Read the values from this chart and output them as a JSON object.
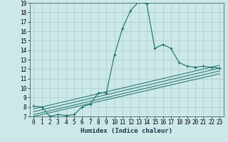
{
  "xlabel": "Humidex (Indice chaleur)",
  "bg_color": "#cce8e8",
  "grid_color": "#aacccc",
  "line_color": "#1a6e6a",
  "xlim": [
    -0.5,
    23.5
  ],
  "ylim": [
    7,
    19
  ],
  "yticks": [
    7,
    8,
    9,
    10,
    11,
    12,
    13,
    14,
    15,
    16,
    17,
    18,
    19
  ],
  "xticks": [
    0,
    1,
    2,
    3,
    4,
    5,
    6,
    7,
    8,
    9,
    10,
    11,
    12,
    13,
    14,
    15,
    16,
    17,
    18,
    19,
    20,
    21,
    22,
    23
  ],
  "xtick_labels": [
    "0",
    "1",
    "2",
    "3",
    "4",
    "5",
    "6",
    "7",
    "8",
    "9",
    "10",
    "11",
    "12",
    "13",
    "14",
    "15",
    "16",
    "17",
    "18",
    "19",
    "20",
    "21",
    "22",
    "23"
  ],
  "main_x": [
    0,
    1,
    2,
    3,
    4,
    5,
    6,
    7,
    8,
    9,
    10,
    11,
    12,
    13,
    14,
    15,
    16,
    17,
    18,
    19,
    20,
    21,
    22,
    23
  ],
  "main_y": [
    8.1,
    8.0,
    7.0,
    7.2,
    7.1,
    7.2,
    8.0,
    8.3,
    9.5,
    9.5,
    13.5,
    16.3,
    18.2,
    19.1,
    18.9,
    14.2,
    14.6,
    14.2,
    12.7,
    12.3,
    12.2,
    12.3,
    12.2,
    12.1
  ],
  "ref_lines": [
    {
      "x": [
        0,
        23
      ],
      "y": [
        7.0,
        11.5
      ]
    },
    {
      "x": [
        0,
        23
      ],
      "y": [
        7.2,
        11.8
      ]
    },
    {
      "x": [
        0,
        23
      ],
      "y": [
        7.5,
        12.1
      ]
    },
    {
      "x": [
        0,
        23
      ],
      "y": [
        7.8,
        12.4
      ]
    }
  ],
  "tick_fontsize": 5.5,
  "xlabel_fontsize": 6.5
}
